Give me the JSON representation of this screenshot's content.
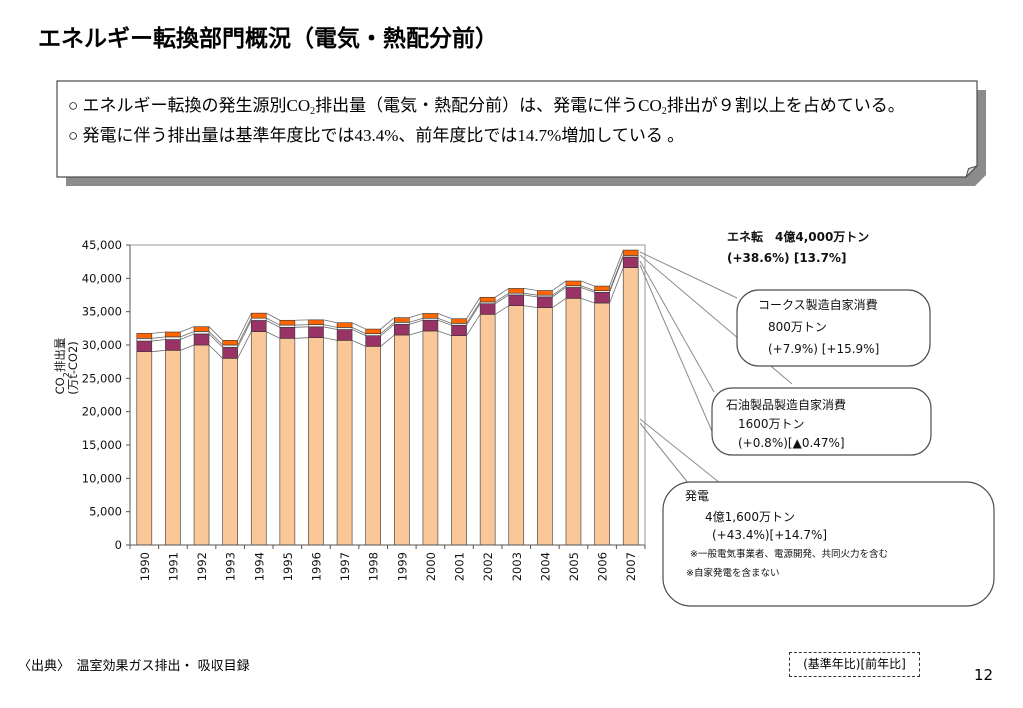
{
  "slide": {
    "title": "エネルギー転換部門概況（電気・熱配分前）",
    "summary": {
      "line1": [
        "○ エネルギー転換の発生源別CO",
        "2",
        "排出量（電気・熱配分前）は、発電に伴うCO",
        "2",
        "排出が９割以上を占めている。"
      ],
      "line2": "○ 発電に伴う排出量は基準年度比では43.4%、前年度比では14.7%増加している 。"
    },
    "source": "〈出典〉　温室効果ガス排出・ 吸収目録",
    "legend_key": "(基準年比)[前年比]",
    "page_number": "12"
  },
  "chart_data": {
    "type": "bar",
    "stacked": true,
    "categories": [
      "1990",
      "1991",
      "1992",
      "1993",
      "1994",
      "1995",
      "1996",
      "1997",
      "1998",
      "1999",
      "2000",
      "2001",
      "2002",
      "2003",
      "2004",
      "2005",
      "2006",
      "2007"
    ],
    "series": [
      {
        "name": "発電",
        "color": "#FAC898",
        "values": [
          29000,
          29200,
          30000,
          28000,
          32000,
          31000,
          31100,
          30700,
          29800,
          31500,
          32100,
          31400,
          34600,
          35900,
          35600,
          37000,
          36300,
          41600
        ]
      },
      {
        "name": "石油製品製造自家消費",
        "color": "#993366",
        "values": [
          1590,
          1620,
          1660,
          1640,
          1680,
          1650,
          1630,
          1620,
          1600,
          1600,
          1620,
          1570,
          1590,
          1610,
          1620,
          1630,
          1610,
          1600
        ]
      },
      {
        "color": "#F2F2F2",
        "values": [
          410,
          400,
          370,
          360,
          350,
          340,
          330,
          320,
          310,
          300,
          290,
          280,
          270,
          260,
          250,
          250,
          240,
          240
        ]
      },
      {
        "name": "コークス製造自家消費",
        "color": "#FF6600",
        "values": [
          740,
          730,
          720,
          700,
          750,
          720,
          710,
          700,
          680,
          700,
          720,
          690,
          700,
          720,
          700,
          720,
          690,
          800
        ]
      }
    ],
    "ylabel": {
      "prefix": "CO",
      "sub": "2",
      "suffix": "排出量",
      "unit": "(万t-CO2)"
    },
    "ylim": [
      0,
      45000
    ],
    "yticks": [
      0,
      5000,
      10000,
      15000,
      20000,
      25000,
      30000,
      35000,
      40000,
      45000
    ],
    "ytick_labels": [
      "0",
      "5,000",
      "10,000",
      "15,000",
      "20,000",
      "25,000",
      "30,000",
      "35,000",
      "40,000",
      "45,000"
    ],
    "grid": false,
    "annotations": {
      "total": {
        "label": "エネ転　4億4,000万トン",
        "change": "(+38.6%) [13.7%]"
      },
      "coke": {
        "amount": "800万トン",
        "change": "(+7.9%) [+15.9%]"
      },
      "oil": {
        "amount": "1600万トン",
        "change": "(+0.8%)[▲0.47%]"
      },
      "power": {
        "amount": "4億1,600万トン",
        "change": "(+43.4%)[+14.7%]",
        "note1": "※一般電気事業者、電源開発、共同火力を含む",
        "note2": "※自家発電を含まない"
      }
    }
  }
}
